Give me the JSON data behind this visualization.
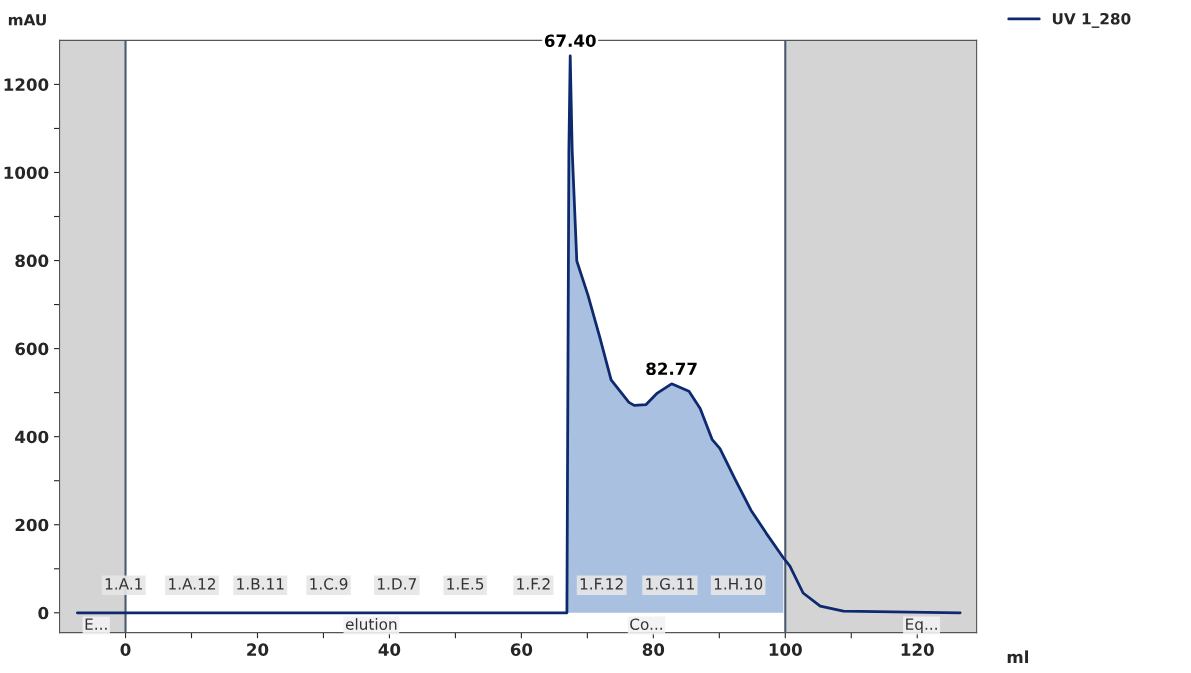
{
  "chart_data": {
    "type": "line",
    "xlabel": "ml",
    "ylabel": "mAU",
    "xlim": [
      -10,
      129
    ],
    "ylim": [
      -45,
      1300
    ],
    "xticks": [
      0,
      {
        "value": 10,
        "label": null
      },
      20,
      {
        "value": 30,
        "label": null
      },
      40,
      {
        "value": 50,
        "label": null
      },
      60,
      {
        "value": 70,
        "label": null
      },
      80,
      {
        "value": 90,
        "label": null
      },
      100,
      {
        "value": 110,
        "label": null
      },
      120
    ],
    "yticks": [
      0,
      {
        "value": 100,
        "label": null
      },
      200,
      {
        "value": 300,
        "label": null
      },
      400,
      {
        "value": 500,
        "label": null
      },
      600,
      {
        "value": 700,
        "label": null
      },
      800,
      {
        "value": 900,
        "label": null
      },
      1000,
      {
        "value": 1100,
        "label": null
      },
      1200
    ],
    "grid": false,
    "legend": "top right",
    "marker": "none",
    "line_style": "solid",
    "series": [
      {
        "type": "area",
        "color": "#a9c0e0",
        "x": [
          66.9,
          67.2,
          67.4,
          67.7,
          68.4,
          70.1,
          71.9,
          73.6,
          76.3,
          77.1,
          78.9,
          80.6,
          82.77,
          85.4,
          87.1,
          88.9,
          90.1,
          92.4,
          94.8,
          97.1,
          99.7
        ],
        "values": [
          0,
          1050,
          1265,
          1050,
          799,
          721,
          625,
          529,
          478,
          471,
          473,
          499,
          520,
          503,
          464,
          394,
          373,
          303,
          233,
          181,
          125
        ]
      },
      {
        "name": "UV 1_280",
        "color": "#0d2a6e",
        "x": [
          -7.3,
          66.9,
          67.2,
          67.4,
          67.7,
          68.4,
          70.1,
          71.9,
          73.6,
          76.3,
          77.1,
          78.9,
          80.6,
          82.77,
          85.4,
          87.1,
          88.9,
          90.1,
          92.4,
          94.8,
          97.1,
          99.7,
          100.7,
          102.7,
          105.3,
          108.8,
          126.5
        ],
        "values": [
          0,
          0,
          1050,
          1265,
          1050,
          799,
          721,
          625,
          529,
          478,
          471,
          473,
          499,
          520,
          503,
          464,
          394,
          373,
          303,
          233,
          181,
          125,
          106,
          45,
          15,
          4,
          0
        ]
      }
    ],
    "bands": [
      {
        "axis": "x",
        "from": -10,
        "to": 0,
        "color": "#d4d4d4"
      },
      {
        "axis": "x",
        "from": 100,
        "to": 129,
        "color": "#d4d4d4"
      }
    ],
    "ref_lines": [
      {
        "axis": "x",
        "value": 0,
        "color": "#4a5a6e"
      },
      {
        "axis": "x",
        "value": 100,
        "color": "#4a5a6e"
      }
    ],
    "annotations": [
      {
        "text": "67.40",
        "x": 67.4,
        "y": 1265
      },
      {
        "text": "82.77",
        "x": 82.77,
        "y": 520
      },
      "1.A.1",
      "1.A.12",
      "1.B.11",
      "1.C.9",
      "1.D.7",
      "1.E.5",
      "1.F.2",
      "1.F.12",
      "1.G.11",
      "1.H.10",
      "E...",
      "elution",
      "Co...",
      "Eq..."
    ]
  }
}
